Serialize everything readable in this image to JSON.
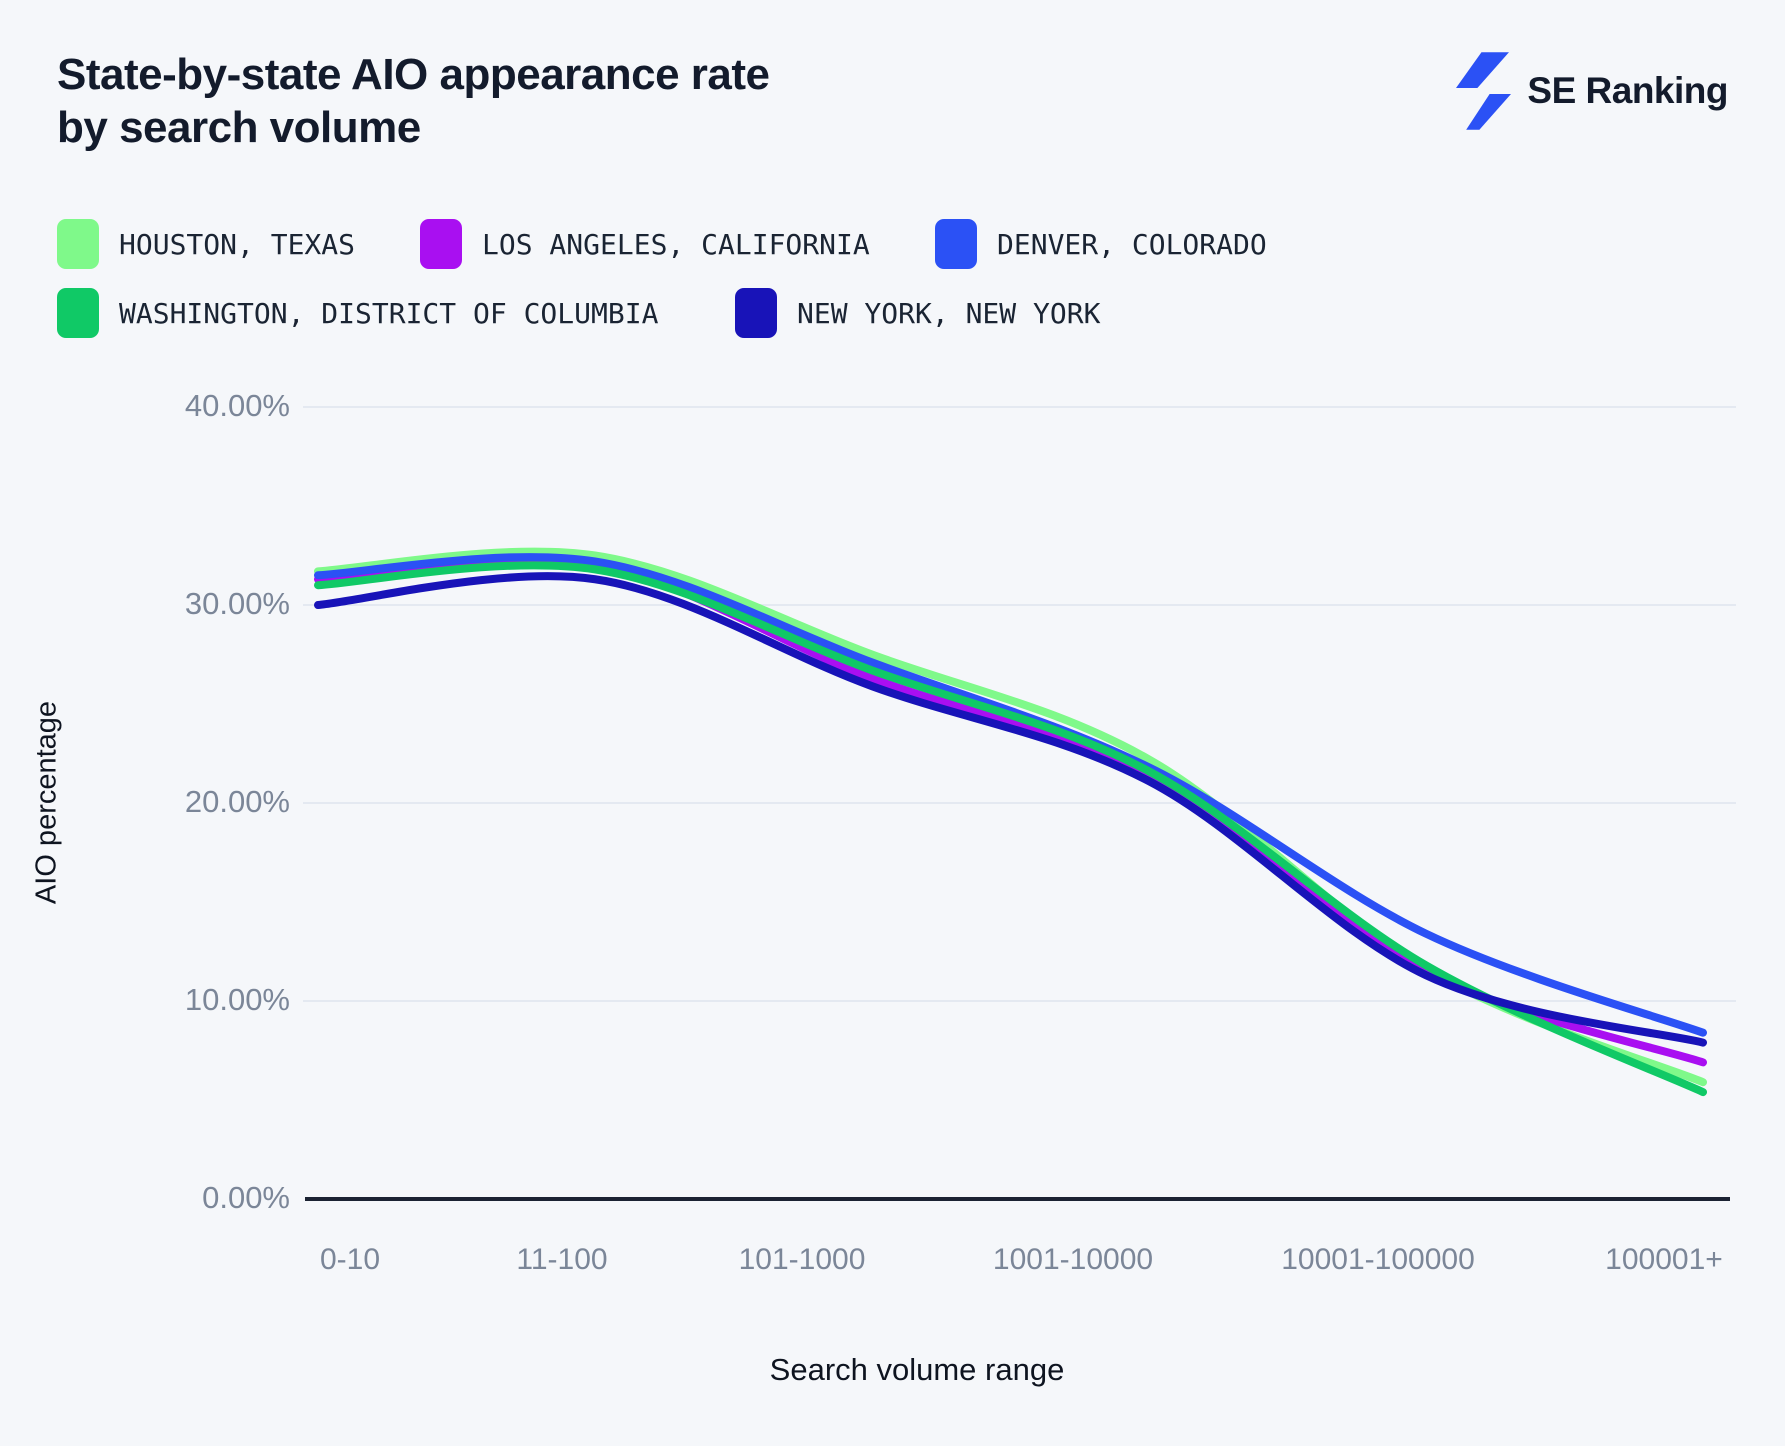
{
  "header": {
    "title_lines": [
      "State-by-state AIO appearance rate",
      "by search volume"
    ],
    "brand": "SE Ranking"
  },
  "chart_data": {
    "type": "line",
    "title": "State-by-state AIO appearance rate by search volume",
    "categories": [
      "0-10",
      "11-100",
      "101-1000",
      "1001-10000",
      "10001-100000",
      "100001+"
    ],
    "series": [
      {
        "name": "Houston, Texas",
        "color": "#7FF98A",
        "values": [
          31.7,
          32.5,
          27.5,
          22.2,
          11.6,
          5.9
        ]
      },
      {
        "name": "Los Angeles, California",
        "color": "#A90FF1",
        "values": [
          31.3,
          32.0,
          26.3,
          21.4,
          11.5,
          6.9
        ]
      },
      {
        "name": "Denver, Colorado",
        "color": "#2B51F5",
        "values": [
          31.5,
          32.2,
          27.1,
          21.8,
          13.4,
          8.4
        ]
      },
      {
        "name": "Washington, District of Columbia",
        "color": "#10C966",
        "values": [
          31.0,
          31.8,
          26.7,
          21.6,
          11.8,
          5.4
        ]
      },
      {
        "name": "New York, New York",
        "color": "#1813B8",
        "values": [
          30.0,
          31.3,
          25.9,
          21.1,
          11.3,
          7.9
        ]
      }
    ],
    "xlabel": "Search volume range",
    "ylabel": "AIO percentage",
    "ylim": [
      0,
      40
    ],
    "y_ticks": [
      "40.00%",
      "30.00%",
      "20.00%",
      "10.00%",
      "0.00%"
    ],
    "grid": "horizontal",
    "legend_position": "top-left"
  },
  "colors": {
    "background": "#F5F7FA",
    "gridline": "#E4E9F1",
    "axis_line": "#1B2232",
    "tick_text": "#7B8698",
    "title_text": "#131B2C",
    "brand_blue": "#2B51F5"
  }
}
